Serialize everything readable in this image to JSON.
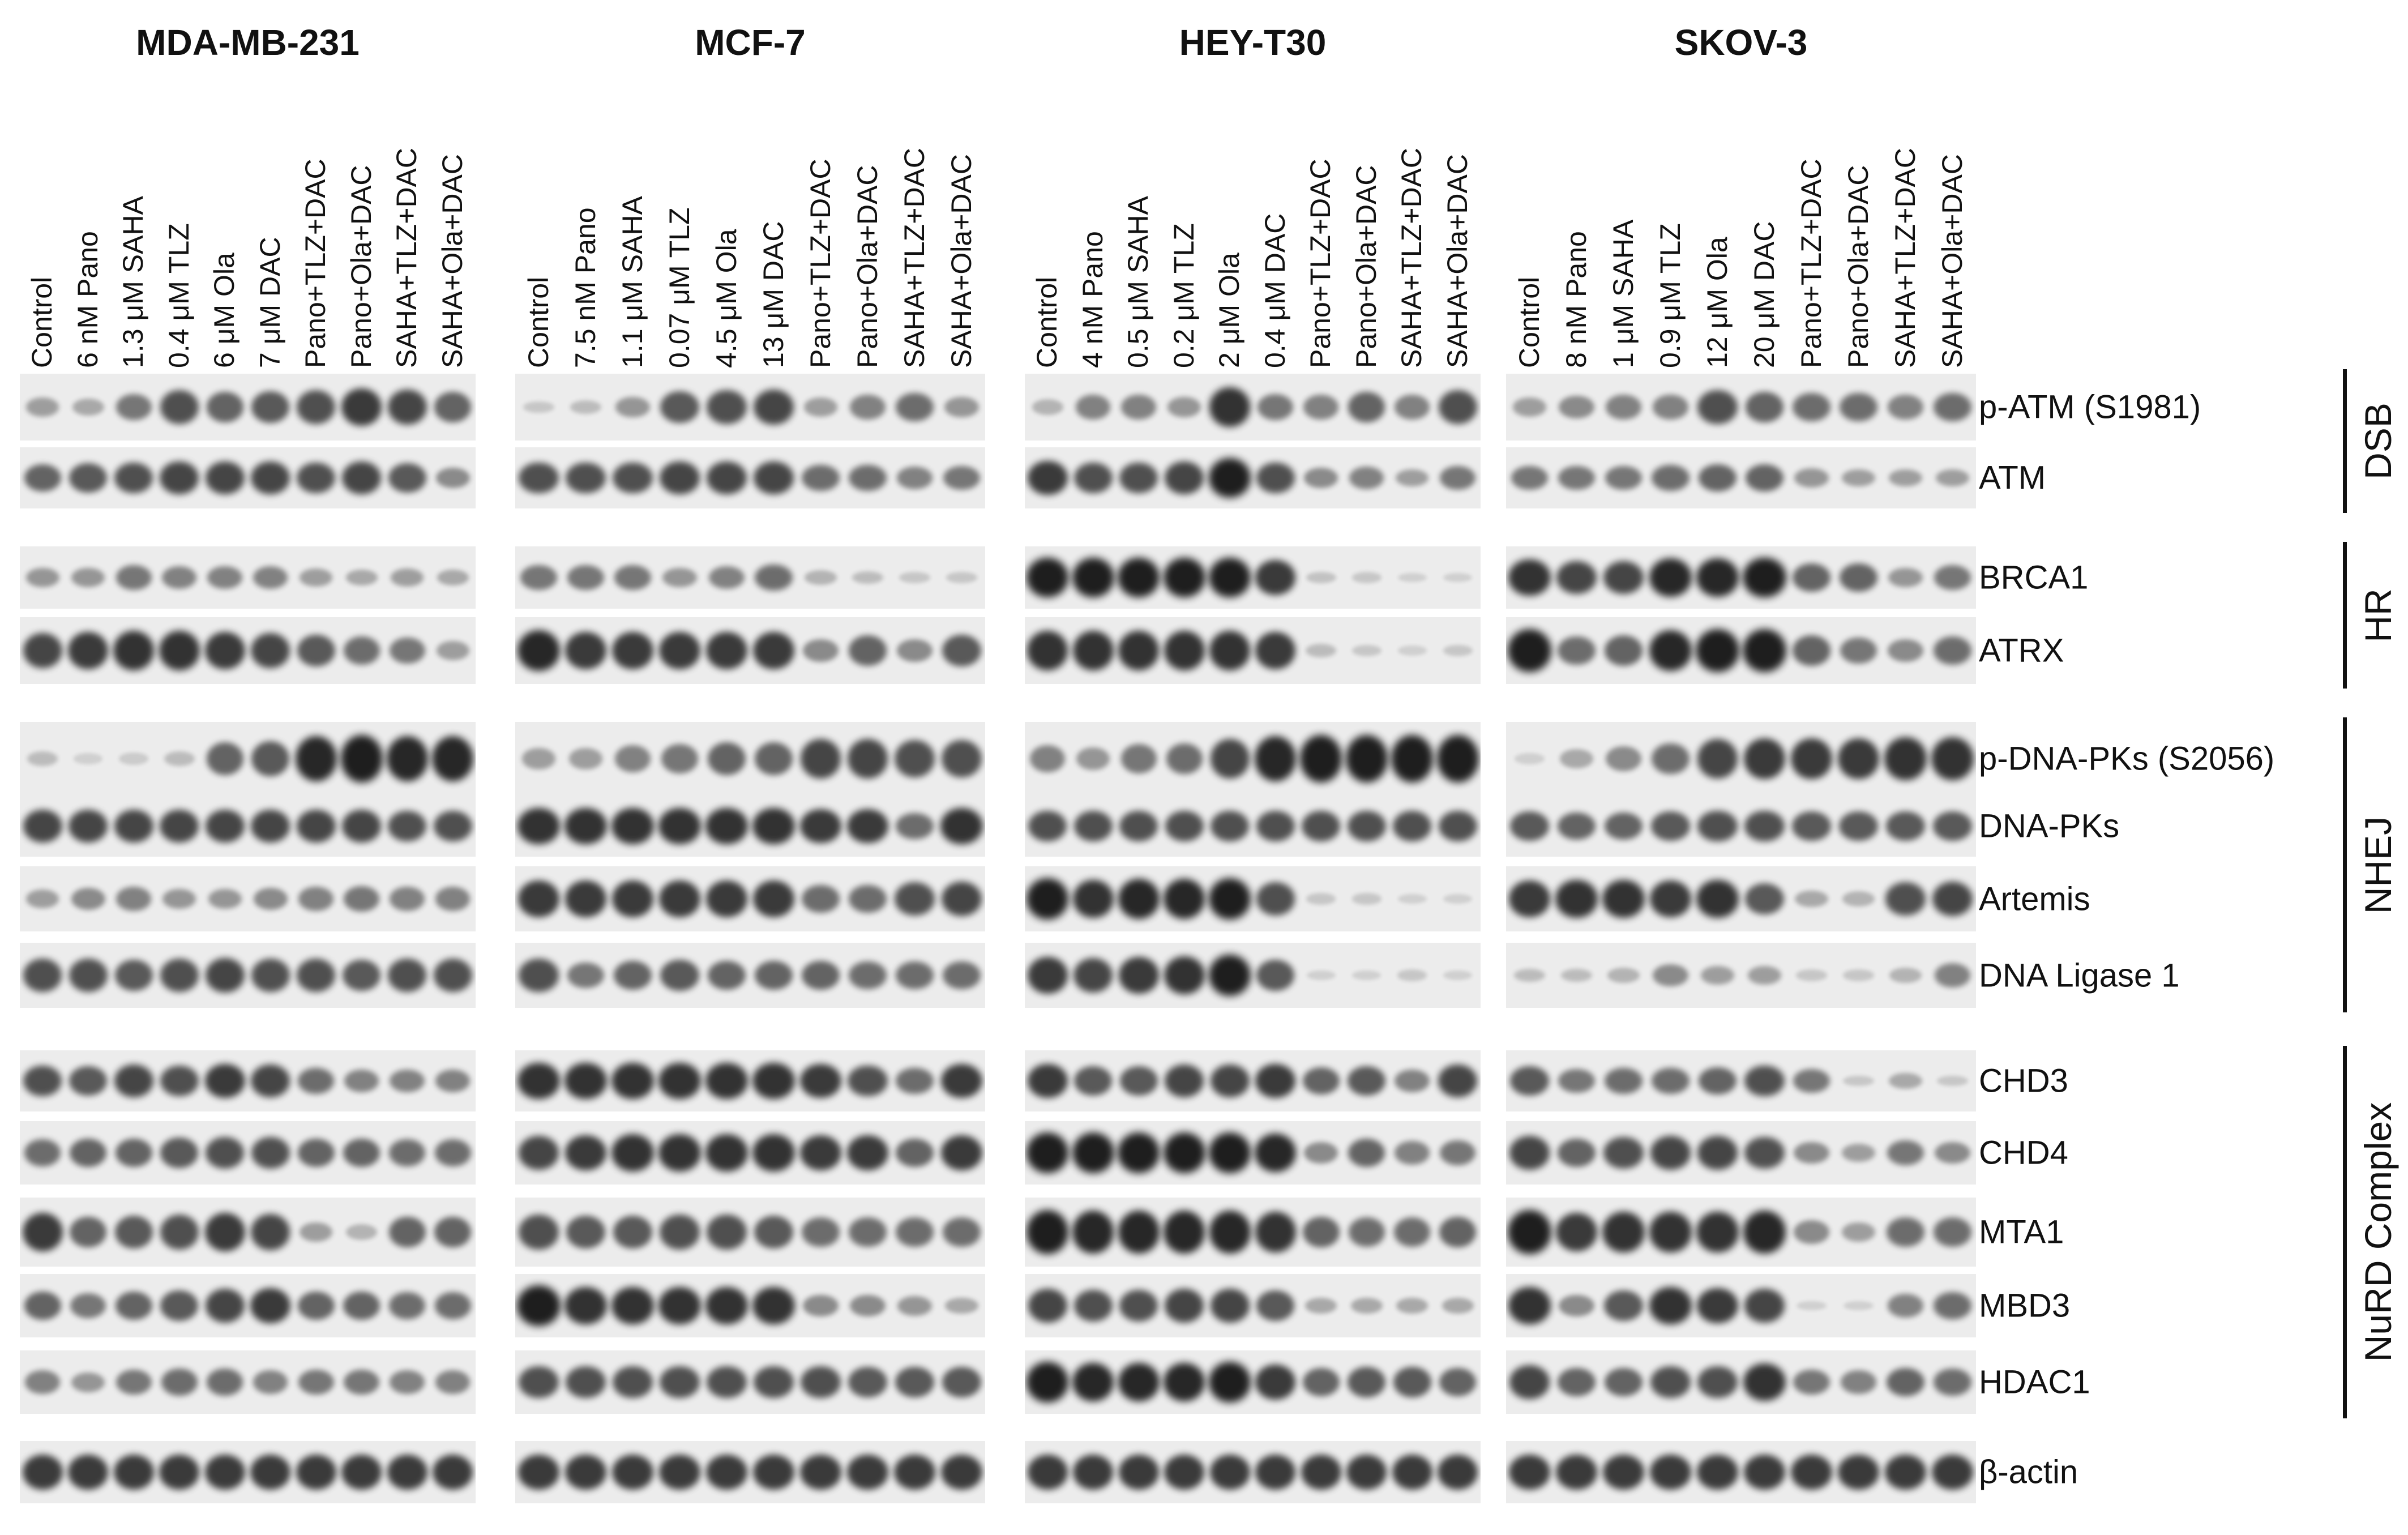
{
  "cell_lines": [
    {
      "name": "MDA-MB-231",
      "lanes": [
        "Control",
        "6 nM Pano",
        "1.3 μM SAHA",
        "0.4 μM TLZ",
        "6 μM Ola",
        "7 μM DAC",
        "Pano+TLZ+DAC",
        "Pano+Ola+DAC",
        "SAHA+TLZ+DAC",
        "SAHA+Ola+DAC"
      ]
    },
    {
      "name": "MCF-7",
      "lanes": [
        "Control",
        "7.5 nM Pano",
        "1.1 μM SAHA",
        "0.07 μM TLZ",
        "4.5 μM Ola",
        "13 μM DAC",
        "Pano+TLZ+DAC",
        "Pano+Ola+DAC",
        "SAHA+TLZ+DAC",
        "SAHA+Ola+DAC"
      ]
    },
    {
      "name": "HEY-T30",
      "lanes": [
        "Control",
        "4 nM Pano",
        "0.5 μM SAHA",
        "0.2 μM TLZ",
        "2 μM Ola",
        "0.4 μM DAC",
        "Pano+TLZ+DAC",
        "Pano+Ola+DAC",
        "SAHA+TLZ+DAC",
        "SAHA+Ola+DAC"
      ]
    },
    {
      "name": "SKOV-3",
      "lanes": [
        "Control",
        "8 nM Pano",
        "1 μM SAHA",
        "0.9 μM TLZ",
        "12 μM Ola",
        "20 μM DAC",
        "Pano+TLZ+DAC",
        "Pano+Ola+DAC",
        "SAHA+TLZ+DAC",
        "SAHA+Ola+DAC"
      ]
    }
  ],
  "proteins": [
    {
      "label": "p-ATM (S1981)",
      "intensity": [
        [
          0.3,
          0.25,
          0.5,
          0.7,
          0.6,
          0.65,
          0.7,
          0.8,
          0.75,
          0.6
        ],
        [
          0.1,
          0.15,
          0.35,
          0.65,
          0.7,
          0.75,
          0.3,
          0.45,
          0.55,
          0.35
        ],
        [
          0.2,
          0.45,
          0.45,
          0.35,
          0.85,
          0.5,
          0.45,
          0.6,
          0.45,
          0.7
        ],
        [
          0.3,
          0.4,
          0.45,
          0.45,
          0.7,
          0.6,
          0.55,
          0.55,
          0.45,
          0.55
        ]
      ]
    },
    {
      "label": "ATM",
      "intensity": [
        [
          0.6,
          0.65,
          0.7,
          0.75,
          0.75,
          0.75,
          0.7,
          0.75,
          0.65,
          0.4
        ],
        [
          0.7,
          0.7,
          0.7,
          0.75,
          0.75,
          0.75,
          0.55,
          0.55,
          0.45,
          0.5
        ],
        [
          0.8,
          0.7,
          0.7,
          0.75,
          0.95,
          0.7,
          0.4,
          0.45,
          0.3,
          0.5
        ],
        [
          0.5,
          0.5,
          0.5,
          0.55,
          0.6,
          0.6,
          0.35,
          0.3,
          0.3,
          0.3
        ]
      ]
    },
    {
      "label": "BRCA1",
      "intensity": [
        [
          0.35,
          0.35,
          0.5,
          0.45,
          0.45,
          0.45,
          0.3,
          0.25,
          0.3,
          0.25
        ],
        [
          0.5,
          0.5,
          0.5,
          0.35,
          0.45,
          0.55,
          0.2,
          0.15,
          0.1,
          0.1
        ],
        [
          0.95,
          0.95,
          0.95,
          0.95,
          0.95,
          0.8,
          0.12,
          0.1,
          0.05,
          0.05
        ],
        [
          0.85,
          0.75,
          0.75,
          0.9,
          0.9,
          0.95,
          0.6,
          0.6,
          0.35,
          0.5
        ]
      ]
    },
    {
      "label": "ATRX",
      "intensity": [
        [
          0.75,
          0.8,
          0.85,
          0.85,
          0.8,
          0.75,
          0.65,
          0.55,
          0.5,
          0.3
        ],
        [
          0.9,
          0.8,
          0.8,
          0.8,
          0.8,
          0.8,
          0.4,
          0.6,
          0.4,
          0.65
        ],
        [
          0.85,
          0.85,
          0.85,
          0.85,
          0.85,
          0.8,
          0.15,
          0.1,
          0.05,
          0.1
        ],
        [
          0.95,
          0.55,
          0.6,
          0.9,
          0.95,
          0.95,
          0.6,
          0.5,
          0.4,
          0.55
        ]
      ]
    },
    {
      "label": "p-DNA-PKs (S2056)",
      "intensity": [
        [
          0.15,
          0.05,
          0.08,
          0.15,
          0.6,
          0.65,
          0.9,
          0.95,
          0.9,
          0.9
        ],
        [
          0.3,
          0.3,
          0.45,
          0.5,
          0.6,
          0.6,
          0.75,
          0.75,
          0.7,
          0.7
        ],
        [
          0.45,
          0.35,
          0.5,
          0.55,
          0.75,
          0.9,
          0.95,
          0.95,
          0.95,
          0.95
        ],
        [
          0.05,
          0.25,
          0.4,
          0.55,
          0.75,
          0.8,
          0.8,
          0.8,
          0.85,
          0.85
        ]
      ]
    },
    {
      "label": "DNA-PKs",
      "intensity": [
        [
          0.75,
          0.75,
          0.75,
          0.75,
          0.75,
          0.75,
          0.75,
          0.75,
          0.7,
          0.7
        ],
        [
          0.85,
          0.85,
          0.85,
          0.85,
          0.85,
          0.85,
          0.8,
          0.8,
          0.55,
          0.85
        ],
        [
          0.7,
          0.7,
          0.7,
          0.7,
          0.7,
          0.7,
          0.7,
          0.7,
          0.7,
          0.7
        ],
        [
          0.65,
          0.6,
          0.6,
          0.65,
          0.7,
          0.7,
          0.65,
          0.65,
          0.65,
          0.65
        ]
      ]
    },
    {
      "label": "Artemis",
      "intensity": [
        [
          0.3,
          0.4,
          0.45,
          0.35,
          0.35,
          0.4,
          0.45,
          0.5,
          0.45,
          0.45
        ],
        [
          0.8,
          0.8,
          0.8,
          0.8,
          0.8,
          0.8,
          0.55,
          0.55,
          0.7,
          0.75
        ],
        [
          0.95,
          0.85,
          0.9,
          0.9,
          0.95,
          0.7,
          0.1,
          0.1,
          0.05,
          0.05
        ],
        [
          0.8,
          0.85,
          0.85,
          0.8,
          0.85,
          0.65,
          0.25,
          0.2,
          0.7,
          0.75
        ]
      ]
    },
    {
      "label": "DNA Ligase 1",
      "intensity": [
        [
          0.7,
          0.7,
          0.65,
          0.7,
          0.75,
          0.7,
          0.7,
          0.65,
          0.7,
          0.7
        ],
        [
          0.7,
          0.5,
          0.6,
          0.65,
          0.6,
          0.6,
          0.6,
          0.55,
          0.55,
          0.55
        ],
        [
          0.8,
          0.75,
          0.8,
          0.85,
          0.95,
          0.65,
          0.05,
          0.05,
          0.1,
          0.05
        ],
        [
          0.15,
          0.15,
          0.2,
          0.4,
          0.3,
          0.3,
          0.1,
          0.1,
          0.2,
          0.45
        ]
      ]
    },
    {
      "label": "CHD3",
      "intensity": [
        [
          0.7,
          0.65,
          0.75,
          0.7,
          0.8,
          0.75,
          0.55,
          0.45,
          0.45,
          0.45
        ],
        [
          0.85,
          0.85,
          0.85,
          0.85,
          0.85,
          0.85,
          0.8,
          0.7,
          0.55,
          0.8
        ],
        [
          0.8,
          0.65,
          0.65,
          0.75,
          0.75,
          0.8,
          0.6,
          0.65,
          0.45,
          0.75
        ],
        [
          0.65,
          0.5,
          0.55,
          0.55,
          0.6,
          0.7,
          0.5,
          0.1,
          0.25,
          0.1
        ]
      ]
    },
    {
      "label": "CHD4",
      "intensity": [
        [
          0.55,
          0.6,
          0.6,
          0.65,
          0.7,
          0.7,
          0.6,
          0.6,
          0.55,
          0.55
        ],
        [
          0.75,
          0.8,
          0.85,
          0.85,
          0.85,
          0.85,
          0.8,
          0.8,
          0.6,
          0.8
        ],
        [
          0.95,
          0.95,
          0.95,
          0.95,
          0.95,
          0.9,
          0.4,
          0.6,
          0.45,
          0.5
        ],
        [
          0.75,
          0.6,
          0.7,
          0.75,
          0.75,
          0.7,
          0.4,
          0.3,
          0.5,
          0.4
        ]
      ]
    },
    {
      "label": "MTA1",
      "intensity": [
        [
          0.8,
          0.6,
          0.65,
          0.7,
          0.8,
          0.75,
          0.3,
          0.2,
          0.6,
          0.6
        ],
        [
          0.7,
          0.65,
          0.65,
          0.7,
          0.7,
          0.65,
          0.55,
          0.55,
          0.55,
          0.55
        ],
        [
          0.95,
          0.9,
          0.9,
          0.9,
          0.9,
          0.85,
          0.6,
          0.55,
          0.55,
          0.6
        ],
        [
          0.95,
          0.8,
          0.85,
          0.85,
          0.85,
          0.9,
          0.4,
          0.3,
          0.55,
          0.55
        ]
      ]
    },
    {
      "label": "MBD3",
      "intensity": [
        [
          0.6,
          0.5,
          0.6,
          0.65,
          0.75,
          0.8,
          0.6,
          0.6,
          0.55,
          0.55
        ],
        [
          0.95,
          0.85,
          0.85,
          0.85,
          0.85,
          0.85,
          0.4,
          0.4,
          0.35,
          0.25
        ],
        [
          0.75,
          0.7,
          0.7,
          0.75,
          0.75,
          0.65,
          0.25,
          0.25,
          0.25,
          0.25
        ],
        [
          0.85,
          0.4,
          0.65,
          0.85,
          0.8,
          0.75,
          0.05,
          0.05,
          0.45,
          0.55
        ]
      ]
    },
    {
      "label": "HDAC1",
      "intensity": [
        [
          0.45,
          0.35,
          0.5,
          0.55,
          0.55,
          0.45,
          0.5,
          0.5,
          0.45,
          0.45
        ],
        [
          0.7,
          0.7,
          0.7,
          0.7,
          0.7,
          0.7,
          0.7,
          0.65,
          0.65,
          0.65
        ],
        [
          0.95,
          0.9,
          0.9,
          0.9,
          0.95,
          0.8,
          0.6,
          0.65,
          0.65,
          0.6
        ],
        [
          0.75,
          0.6,
          0.6,
          0.7,
          0.7,
          0.85,
          0.5,
          0.45,
          0.6,
          0.55
        ]
      ]
    },
    {
      "label": "β-actin",
      "intensity": [
        [
          0.8,
          0.8,
          0.8,
          0.8,
          0.8,
          0.8,
          0.8,
          0.8,
          0.8,
          0.8
        ],
        [
          0.8,
          0.8,
          0.8,
          0.8,
          0.8,
          0.8,
          0.8,
          0.8,
          0.8,
          0.8
        ],
        [
          0.8,
          0.8,
          0.8,
          0.8,
          0.8,
          0.8,
          0.8,
          0.8,
          0.8,
          0.8
        ],
        [
          0.8,
          0.8,
          0.8,
          0.8,
          0.8,
          0.8,
          0.8,
          0.8,
          0.8,
          0.8
        ]
      ]
    }
  ],
  "groups": [
    {
      "label": "DSB",
      "rows": [
        0,
        1
      ]
    },
    {
      "label": "HR",
      "rows": [
        2,
        3
      ]
    },
    {
      "label": "NHEJ",
      "rows": [
        4,
        7
      ]
    },
    {
      "label": "NuRD Complex",
      "rows": [
        8,
        12
      ]
    }
  ],
  "colors": {
    "band": "#141414",
    "membrane": "#ececec",
    "text": "#111111"
  }
}
